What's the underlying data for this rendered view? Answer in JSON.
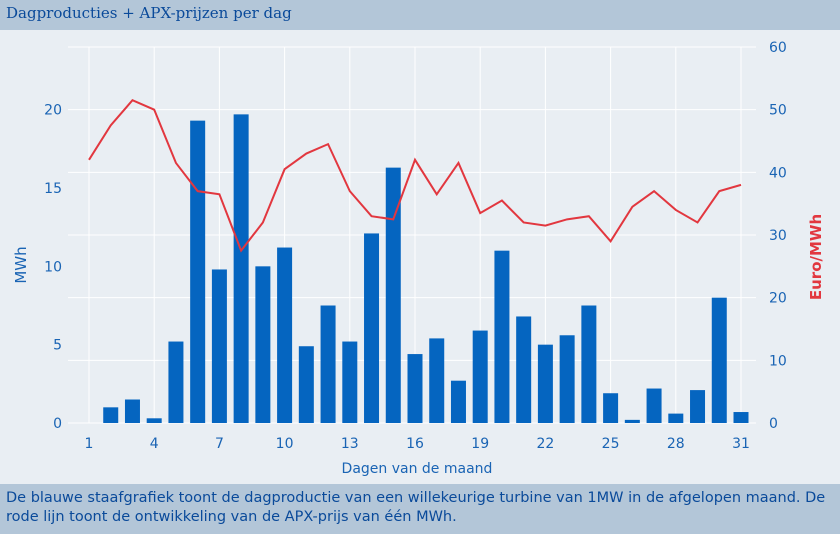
{
  "header": {
    "title": "Dagproducties + APX-prijzen per dag"
  },
  "footer": {
    "text": "De blauwe staafgrafiek toont de dagproductie van een willekeurige turbine van 1MW in de afgelopen maand. De rode lijn toont de ontwikkeling van de APX-prijs van één MWh."
  },
  "colors": {
    "bars": "#0565c0",
    "line": "#e2373f",
    "left_axis": "#1a64b4",
    "right_axis": "#e2373f",
    "grid": "#ffffff"
  },
  "chart_data": {
    "type": "bar",
    "xlabel": "Dagen van de maand",
    "ylabel": "MWh",
    "ylabel_right": "Euro/MWh",
    "x": [
      1,
      2,
      3,
      4,
      5,
      6,
      7,
      8,
      9,
      10,
      11,
      12,
      13,
      14,
      15,
      16,
      17,
      18,
      19,
      20,
      21,
      22,
      23,
      24,
      25,
      26,
      27,
      28,
      29,
      30,
      31
    ],
    "xticks": [
      "1",
      "4",
      "7",
      "10",
      "13",
      "16",
      "19",
      "22",
      "25",
      "28",
      "31"
    ],
    "xtick_values": [
      1,
      4,
      7,
      10,
      13,
      16,
      19,
      22,
      25,
      28,
      31
    ],
    "yticks": [
      "0",
      "5",
      "10",
      "15",
      "20"
    ],
    "ytick_values": [
      0,
      5,
      10,
      15,
      20
    ],
    "y2ticks": [
      "0",
      "10",
      "20",
      "30",
      "40",
      "50",
      "60"
    ],
    "y2tick_values": [
      0,
      10,
      20,
      30,
      40,
      50,
      60
    ],
    "ylim": [
      0,
      24
    ],
    "y2lim": [
      0,
      60
    ],
    "grid": true,
    "series": [
      {
        "name": "Dagproductie",
        "type": "bar",
        "axis": "left",
        "values": [
          0,
          1.0,
          1.5,
          0.3,
          5.2,
          19.3,
          9.8,
          19.7,
          10.0,
          11.2,
          4.9,
          7.5,
          5.2,
          12.1,
          16.3,
          4.4,
          5.4,
          2.7,
          5.9,
          11.0,
          6.8,
          5.0,
          5.6,
          7.5,
          1.9,
          0.2,
          2.2,
          0.6,
          2.1,
          8.0,
          0.7
        ]
      },
      {
        "name": "APX-prijs",
        "type": "line",
        "axis": "right",
        "values": [
          42,
          47.5,
          51.5,
          50,
          41.5,
          37,
          36.5,
          27.5,
          32,
          40.5,
          43,
          44.5,
          37,
          33,
          32.5,
          42,
          36.5,
          41.5,
          33.5,
          35.5,
          32,
          31.5,
          32.5,
          33,
          29,
          34.5,
          37,
          34,
          32,
          37,
          38
        ]
      }
    ]
  }
}
